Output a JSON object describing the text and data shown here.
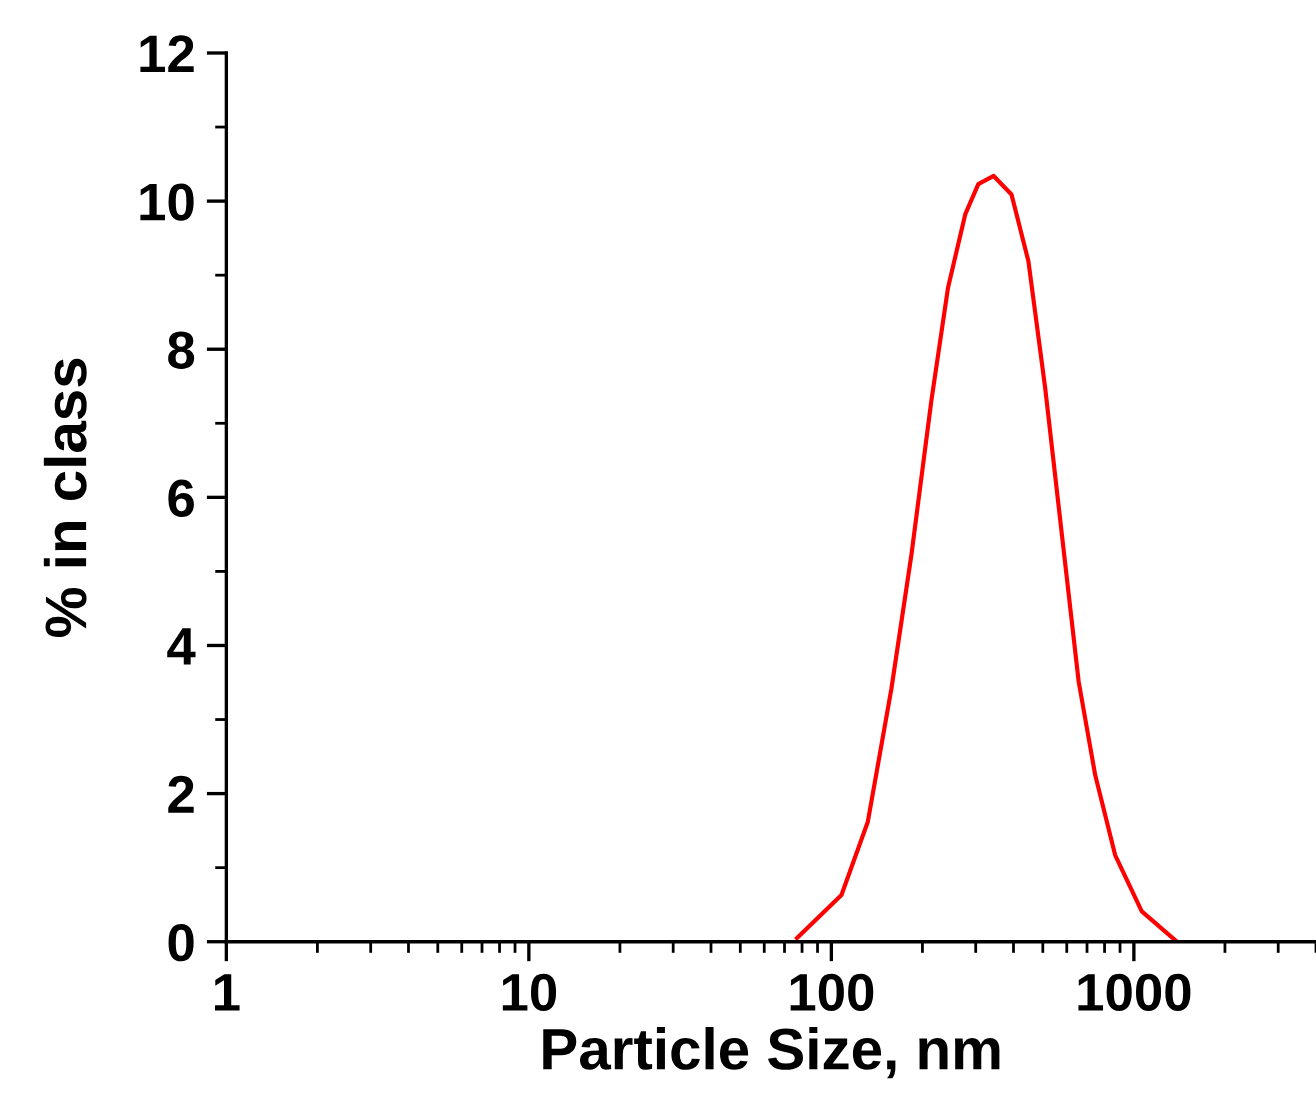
{
  "chart_data": {
    "type": "line",
    "xlabel": "Particle Size, nm",
    "ylabel": "% in class",
    "log": "x",
    "xlim": [
      1,
      4000
    ],
    "xticks": [
      1,
      10,
      100,
      1000
    ],
    "ylim": [
      0,
      12
    ],
    "yticks": [
      0,
      2,
      4,
      6,
      8,
      10,
      12
    ],
    "grid": false,
    "legend": false,
    "marker": "none",
    "line_style": "solid",
    "series": [
      {
        "color": "#ff0000",
        "x": [
          77,
          108,
          132,
          158,
          184,
          214,
          243,
          277,
          306,
          344,
          394,
          448,
          509,
          578,
          657,
          745,
          867,
          1062,
          1370
        ],
        "values": [
          0.05,
          0.63,
          1.62,
          3.42,
          5.23,
          7.3,
          8.83,
          9.82,
          10.23,
          10.34,
          10.09,
          9.19,
          7.48,
          5.5,
          3.51,
          2.25,
          1.17,
          0.41,
          0.02
        ]
      }
    ]
  }
}
